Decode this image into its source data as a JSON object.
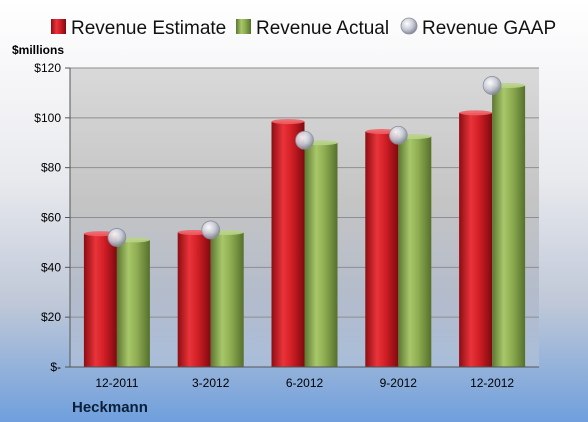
{
  "chart_data": {
    "type": "bar",
    "unit_label": "$millions",
    "company": "Heckmann",
    "categories": [
      "12-2011",
      "3-2012",
      "6-2012",
      "9-2012",
      "12-2012"
    ],
    "series": [
      {
        "name": "Revenue Estimate",
        "kind": "bar",
        "color": "#d0202a",
        "values": [
          53.5,
          54,
          98.5,
          94.5,
          102
        ]
      },
      {
        "name": "Revenue Actual",
        "kind": "bar",
        "color": "#8aac4e",
        "values": [
          51,
          54,
          90,
          92.5,
          113
        ]
      },
      {
        "name": "Revenue GAAP",
        "kind": "marker",
        "color": "#c9ccd8",
        "values": [
          52,
          55,
          91,
          93,
          113
        ]
      }
    ],
    "ylim": [
      0,
      120
    ],
    "yticks": [
      {
        "value": 0,
        "label": "$-"
      },
      {
        "value": 20,
        "label": "$20"
      },
      {
        "value": 40,
        "label": "$40"
      },
      {
        "value": 60,
        "label": "$60"
      },
      {
        "value": 80,
        "label": "$80"
      },
      {
        "value": 100,
        "label": "$100"
      },
      {
        "value": 120,
        "label": "$120"
      }
    ],
    "grid": true,
    "legend_position": "top"
  }
}
